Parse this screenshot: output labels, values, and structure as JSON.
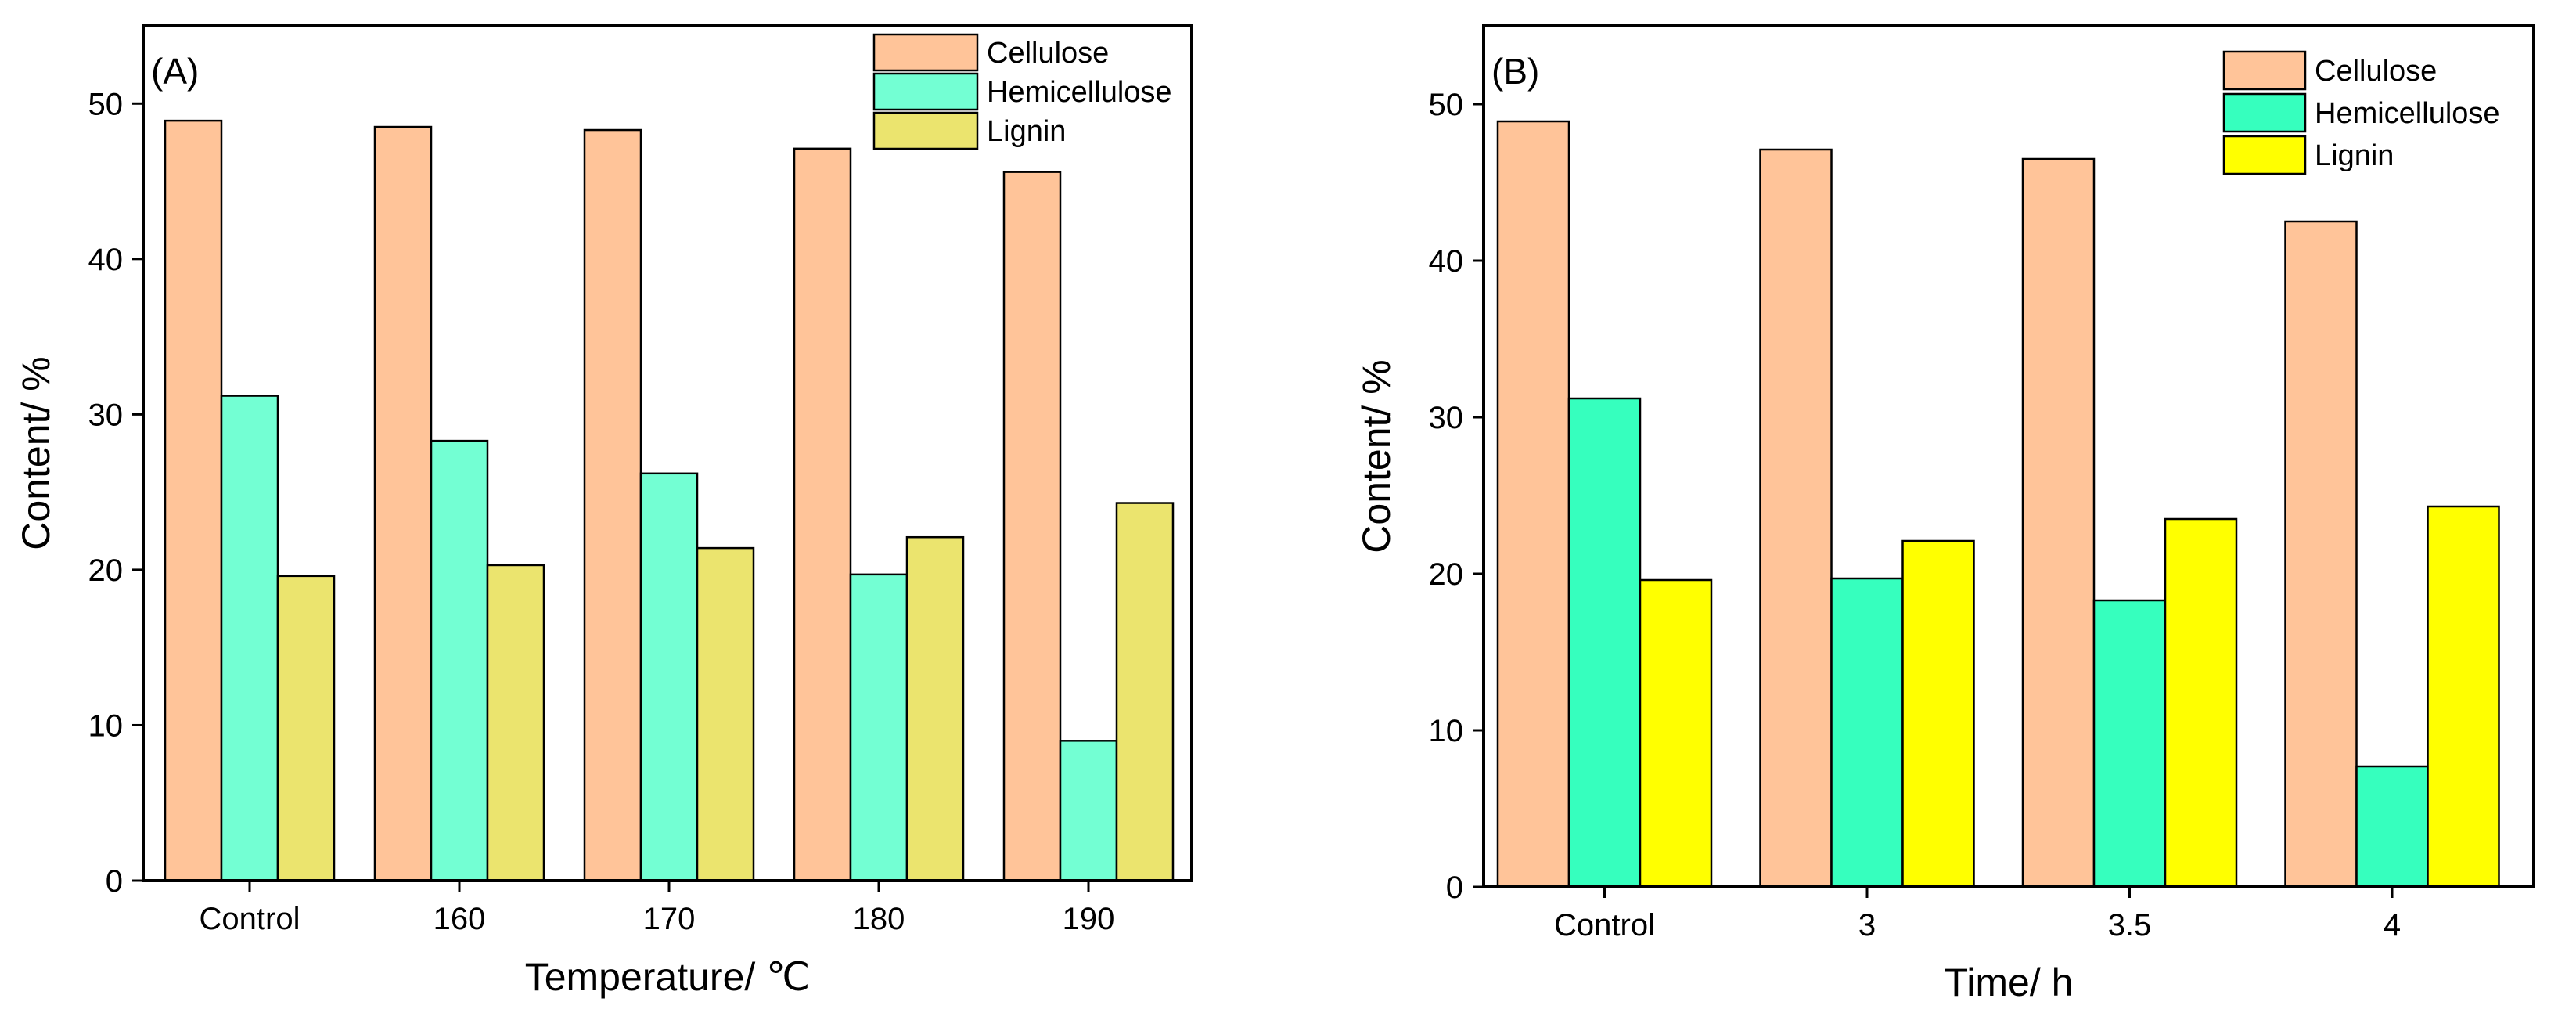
{
  "chart_data": [
    {
      "type": "bar",
      "panel_label": "(A)",
      "categories": [
        "Control",
        "160",
        "170",
        "180",
        "190"
      ],
      "series": [
        {
          "name": "Cellulose",
          "values": [
            48.9,
            48.5,
            48.3,
            47.1,
            45.6
          ],
          "color": "#FFC499"
        },
        {
          "name": "Hemicellulose",
          "values": [
            31.2,
            28.3,
            26.2,
            19.7,
            9.0
          ],
          "color": "#73FFD3"
        },
        {
          "name": "Lignin",
          "values": [
            19.6,
            20.3,
            21.4,
            22.1,
            24.3
          ],
          "color": "#EBE46E"
        }
      ],
      "xlabel": "Temperature/ ℃",
      "ylabel": "Content/ %",
      "ylim": [
        0,
        55
      ],
      "yticks": [
        0,
        10,
        20,
        30,
        40,
        50
      ],
      "grid": false,
      "legend_position": "top-right"
    },
    {
      "type": "bar",
      "panel_label": "(B)",
      "categories": [
        "Control",
        "3",
        "3.5",
        "4"
      ],
      "series": [
        {
          "name": "Cellulose",
          "values": [
            48.9,
            47.1,
            46.5,
            42.5
          ],
          "color": "#FFC499"
        },
        {
          "name": "Hemicellulose",
          "values": [
            31.2,
            19.7,
            18.3,
            7.7
          ],
          "color": "#36FFBE"
        },
        {
          "name": "Lignin",
          "values": [
            19.6,
            22.1,
            23.5,
            24.3
          ],
          "color": "#FFFF00"
        }
      ],
      "xlabel": "Time/ h",
      "ylabel": "Content/ %",
      "ylim": [
        0,
        55
      ],
      "yticks": [
        0,
        10,
        20,
        30,
        40,
        50
      ],
      "grid": false,
      "legend_position": "top-right"
    }
  ]
}
